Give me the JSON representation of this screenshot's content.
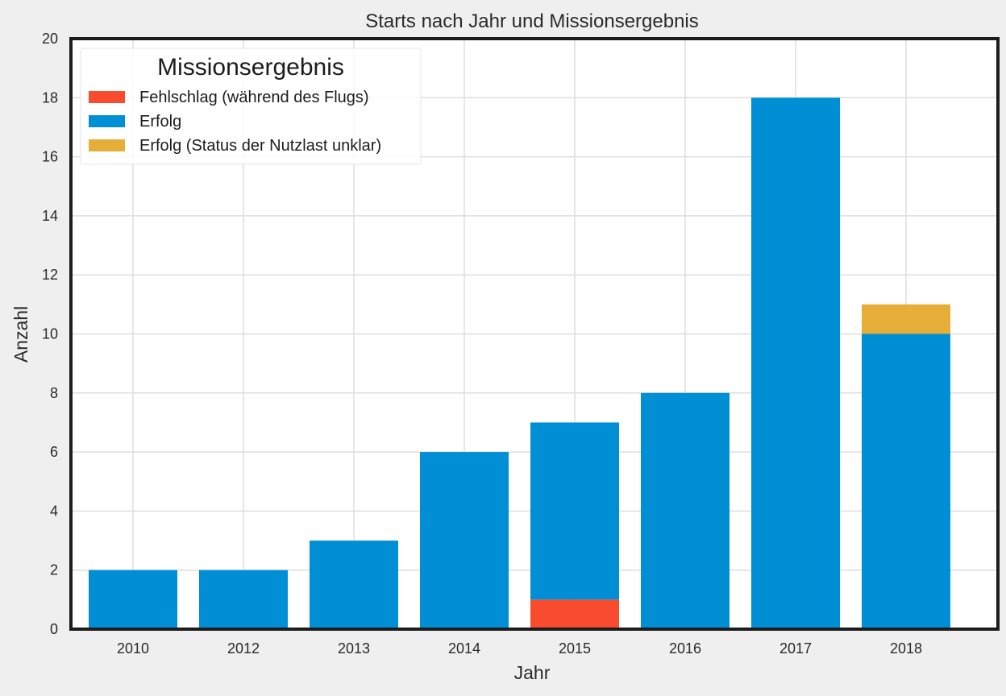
{
  "chart_data": {
    "type": "bar",
    "stacked": true,
    "title": "Starts nach Jahr und Missionsergebnis",
    "xlabel": "Jahr",
    "ylabel": "Anzahl",
    "ylim": [
      0,
      20
    ],
    "yticks": [
      0,
      2,
      4,
      6,
      8,
      10,
      12,
      14,
      16,
      18,
      20
    ],
    "grid": true,
    "categories": [
      "2010",
      "2012",
      "2013",
      "2014",
      "2015",
      "2016",
      "2017",
      "2018"
    ],
    "series": [
      {
        "name": "Fehlschlag (während des Flugs)",
        "color": "#f94c2e",
        "values": [
          0,
          0,
          0,
          0,
          1,
          0,
          0,
          0
        ]
      },
      {
        "name": "Erfolg",
        "color": "#008fd5",
        "values": [
          2,
          2,
          3,
          6,
          6,
          8,
          18,
          10
        ]
      },
      {
        "name": "Erfolg (Status der Nutzlast unklar)",
        "color": "#e5ae38",
        "values": [
          0,
          0,
          0,
          0,
          0,
          0,
          0,
          1
        ]
      }
    ],
    "legend": {
      "title": "Missionsergebnis",
      "position": "top-left"
    }
  }
}
